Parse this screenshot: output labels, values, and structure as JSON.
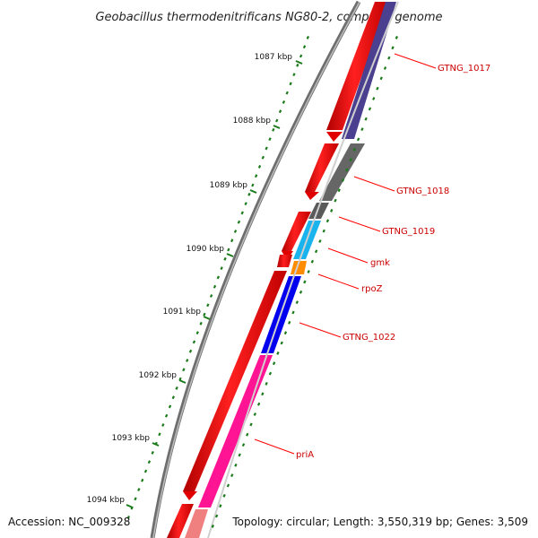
{
  "title": "Geobacillus thermodenitrificans NG80-2, complete genome",
  "footer": {
    "accession": "Accession: NC_009328",
    "summary": "Topology: circular; Length: 3,550,319 bp; Genes: 3,509"
  },
  "scale_ticks": [
    "1087 kbp",
    "1088 kbp",
    "1089 kbp",
    "1090 kbp",
    "1091 kbp",
    "1092 kbp",
    "1093 kbp",
    "1094 kbp"
  ],
  "genes": [
    {
      "label": "GTNG_1017",
      "color": "#4b3f8f"
    },
    {
      "label": "GTNG_1018",
      "color": "#5e5e5e"
    },
    {
      "label": "GTNG_1019",
      "color": "#5e5e5e"
    },
    {
      "label": "gmk",
      "color": "#19b3ee"
    },
    {
      "label": "rpoZ",
      "color": "#ff8c00"
    },
    {
      "label": "GTNG_1022",
      "color": "#0000ee"
    },
    {
      "label": "priA",
      "color": "#ff1493"
    }
  ],
  "colors": {
    "backbone": "#7a7a7a",
    "cds": "#ff0000",
    "scale": "#1a7a1a",
    "label_line": "#ff0000"
  }
}
